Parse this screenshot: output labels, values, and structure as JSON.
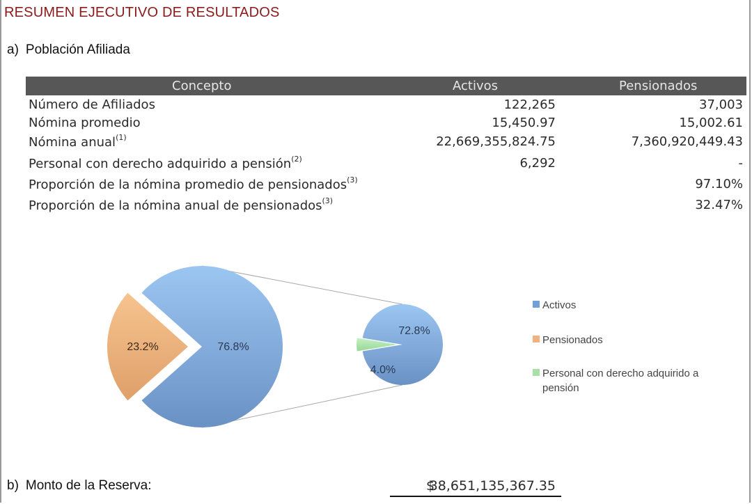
{
  "title": "RESUMEN EJECUTIVO DE RESULTADOS",
  "section_a": {
    "letter": "a)",
    "label": "Población Afiliada"
  },
  "table": {
    "headers": {
      "concepto": "Concepto",
      "activos": "Activos",
      "pensionados": "Pensionados"
    },
    "rows": [
      {
        "label": "Número de Afiliados",
        "note": "",
        "activos": "122,265",
        "pensionados": "37,003"
      },
      {
        "label": "Nómina promedio",
        "note": "",
        "activos": "15,450.97",
        "pensionados": "15,002.61"
      },
      {
        "label": "Nómina anual",
        "note": "(1)",
        "activos": "22,669,355,824.75",
        "pensionados": "7,360,920,449.43"
      },
      {
        "label": "Personal con derecho adquirido a pensión",
        "note": "(2)",
        "activos": "6,292",
        "pensionados": "-"
      },
      {
        "label": "Proporción de la nómina promedio de pensionados",
        "note": "(3)",
        "activos": "",
        "pensionados": "97.10%"
      },
      {
        "label": "Proporción de la nómina anual de pensionados",
        "note": "(3)",
        "activos": "",
        "pensionados": "32.47%"
      }
    ]
  },
  "chart_data": {
    "type": "pie",
    "subtype": "pie-of-pie",
    "main_pie": {
      "values": [
        76.8,
        23.2
      ],
      "labels": [
        "76.8%",
        "23.2%"
      ],
      "series": [
        "Activos",
        "Pensionados"
      ]
    },
    "secondary_pie": {
      "values": [
        72.8,
        4.0
      ],
      "labels": [
        "72.8%",
        "4.0%"
      ],
      "series": [
        "Activos",
        "Personal con derecho adquirido a pensión"
      ]
    },
    "legend": [
      "Activos",
      "Pensionados",
      "Personal con derecho adquirido a pensión"
    ],
    "legend_placement": "right",
    "colors": {
      "Activos": "#7ba9de",
      "Pensionados": "#efb27e",
      "Personal con derecho adquirido a pensión": "#a8e0a8"
    }
  },
  "section_b": {
    "letter": "b)",
    "label": "Monto de la Reserva:",
    "currency": "$",
    "amount": "38,651,135,367.35"
  }
}
